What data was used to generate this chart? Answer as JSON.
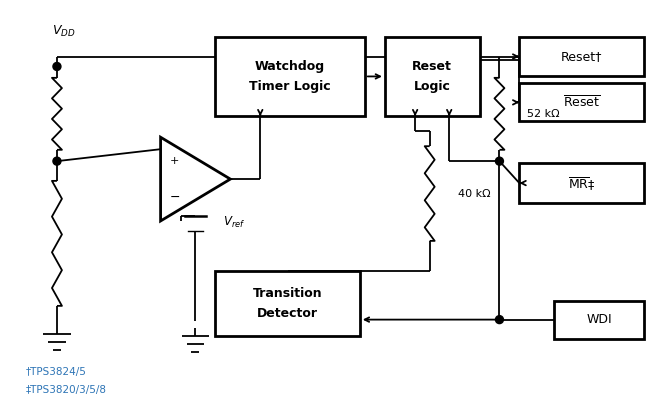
{
  "bg_color": "#ffffff",
  "lw": 1.3,
  "blw": 2.0,
  "figsize": [
    6.71,
    4.11
  ],
  "dpi": 100,
  "vdd_label": "$V_{DD}$",
  "footnote1": "†TPS3824/5",
  "footnote2": "‡TPS3820/3/5/8",
  "res52_label": "52 kΩ",
  "res40_label": "40 kΩ",
  "vref_label": "$V_{ref}$"
}
